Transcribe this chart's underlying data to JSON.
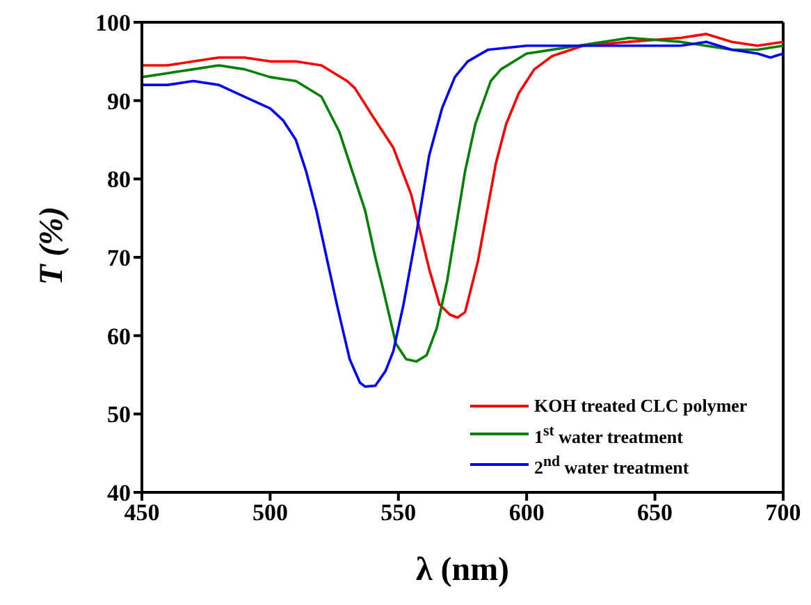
{
  "chart_data": {
    "type": "line",
    "xlabel": "λ (nm)",
    "ylabel": "T (%)",
    "xlim": [
      450,
      700
    ],
    "xticks": [
      450,
      500,
      550,
      600,
      650,
      700
    ],
    "ylim": [
      40,
      100
    ],
    "yticks": [
      40,
      50,
      60,
      70,
      80,
      90,
      100
    ],
    "legend": "bottom right",
    "grid": false,
    "marker": "none",
    "line_style": "solid",
    "series": [
      {
        "name": "KOH treated CLC polymer",
        "color": "#ff0000",
        "x": [
          450,
          460,
          470,
          480,
          490,
          500,
          510,
          520,
          530,
          533,
          540,
          548,
          555,
          562,
          566,
          570,
          573,
          576,
          581,
          588,
          592,
          597,
          603,
          610,
          622,
          640,
          660,
          670,
          680,
          690,
          700
        ],
        "values": [
          94.5,
          94.5,
          95,
          95.5,
          95.5,
          95,
          95,
          94.5,
          92.5,
          91.6,
          88,
          84,
          78,
          68.5,
          64,
          62.7,
          62.3,
          63,
          69.5,
          82,
          87,
          91,
          94,
          95.7,
          97,
          97.5,
          98,
          98.5,
          97.5,
          97,
          97.5
        ]
      },
      {
        "name": "1$^{st}$ water treatment",
        "color": "#008000",
        "x": [
          450,
          460,
          470,
          480,
          490,
          500,
          510,
          520,
          527,
          532,
          537,
          541,
          544,
          549,
          553,
          557,
          561,
          565,
          569,
          573,
          576,
          580,
          586,
          590,
          600,
          620,
          640,
          660,
          680,
          690,
          700
        ],
        "values": [
          93,
          93.5,
          94,
          94.5,
          94,
          93,
          92.5,
          90.5,
          86,
          81,
          76,
          70,
          66,
          59,
          57,
          56.7,
          57.5,
          61,
          67,
          75,
          81,
          87,
          92.5,
          94,
          96,
          97,
          98,
          97.5,
          96.5,
          96.5,
          97
        ]
      },
      {
        "name": "2$^{nd}$ water treatment",
        "color": "#0000ff",
        "x": [
          450,
          460,
          470,
          480,
          490,
          500,
          505,
          510,
          514,
          518,
          522,
          526,
          531,
          535,
          537,
          541,
          545,
          548,
          552,
          557,
          562,
          567,
          572,
          577,
          585,
          600,
          620,
          640,
          660,
          670,
          680,
          690,
          695,
          700
        ],
        "values": [
          92,
          92,
          92.5,
          92,
          90.5,
          89,
          87.5,
          85,
          81,
          76,
          70,
          64,
          57,
          54,
          53.5,
          53.6,
          55.5,
          58,
          64,
          73,
          83,
          89,
          93,
          95,
          96.5,
          97,
          97,
          97,
          97,
          97.5,
          96.5,
          96,
          95.5,
          96
        ]
      }
    ]
  }
}
